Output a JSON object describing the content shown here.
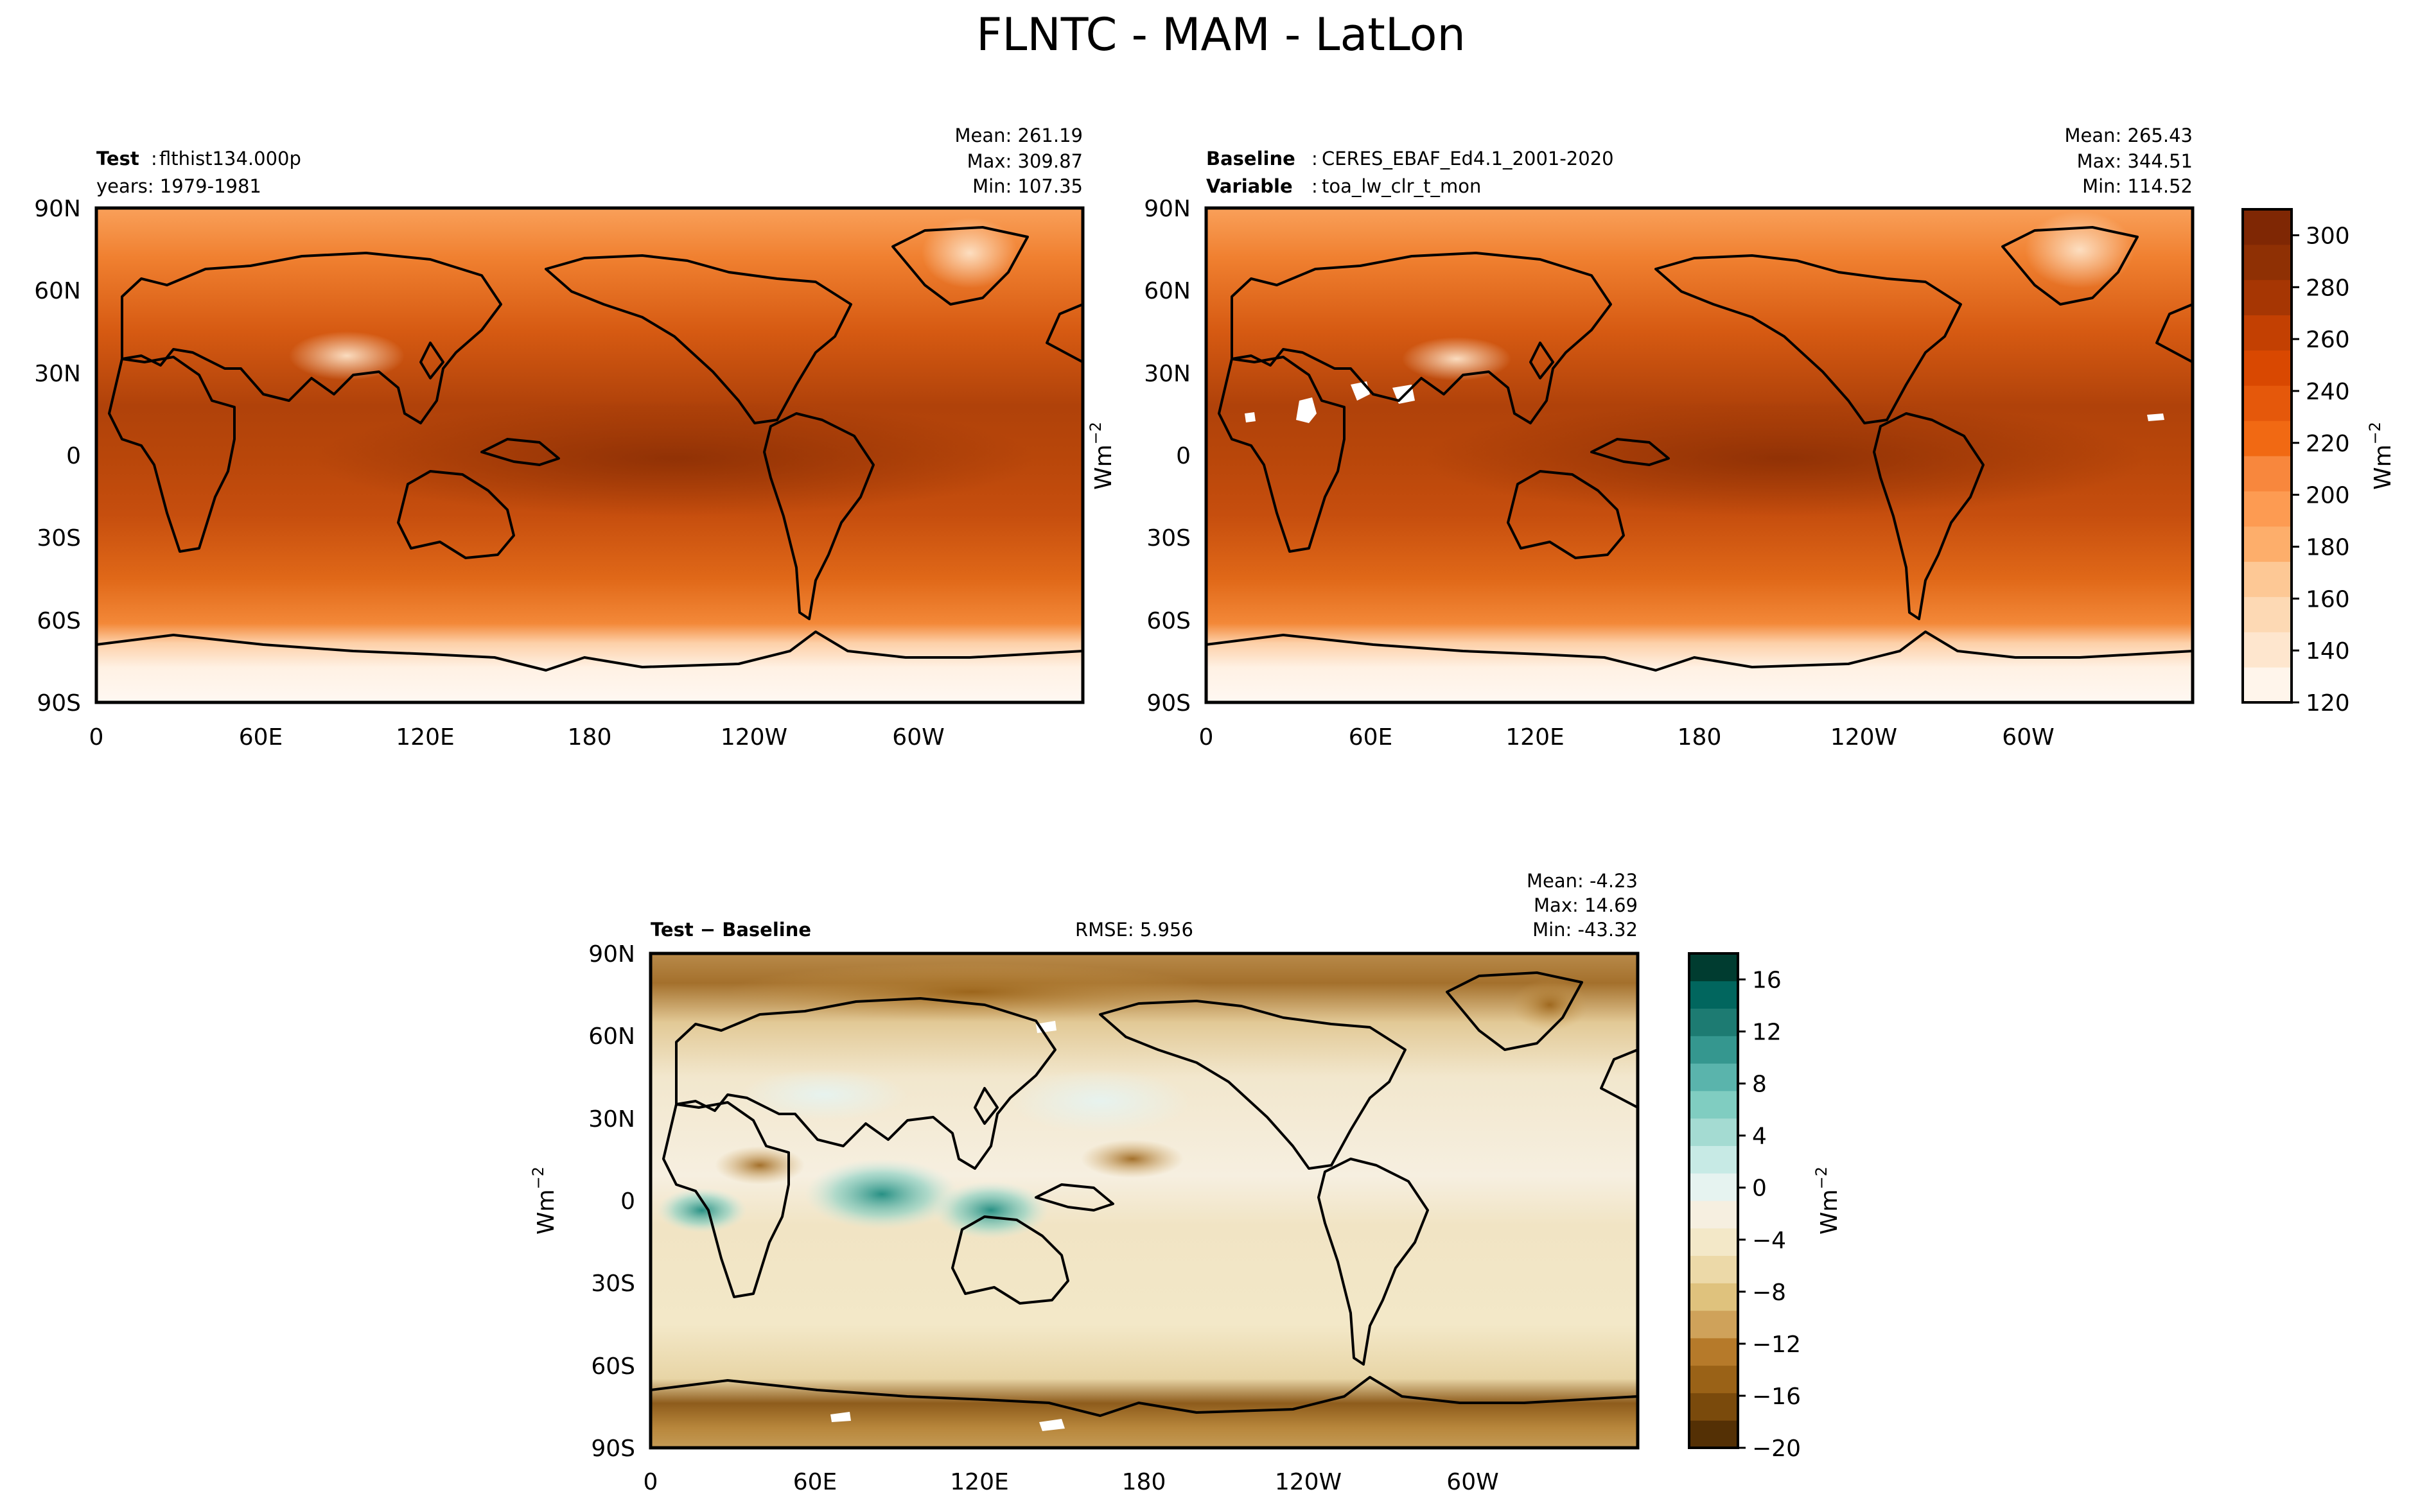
{
  "figure_title": "FLNTC - MAM - LatLon",
  "lat_ticks": [
    "90N",
    "60N",
    "30N",
    "0",
    "30S",
    "60S",
    "90S"
  ],
  "lon_ticks": [
    "0",
    "60E",
    "120E",
    "180",
    "120W",
    "60W"
  ],
  "unit_label": "Wm",
  "unit_exponent": "−2",
  "chart_data": [
    {
      "type": "heatmap",
      "id": "test",
      "title_bold": "Test",
      "title_text": "flthist134.000p",
      "subtitle": "years: 1979-1981",
      "stats": [
        "Mean: 261.19",
        "Max: 309.87",
        "Min: 107.35"
      ],
      "colormap": "Oranges",
      "range": [
        120,
        310
      ]
    },
    {
      "type": "heatmap",
      "id": "baseline",
      "title_bold": "Baseline",
      "title_text": "CERES_EBAF_Ed4.1_2001-2020",
      "subtitle_bold": "Variable",
      "subtitle_text": "toa_lw_clr_t_mon",
      "stats": [
        "Mean: 265.43",
        "Max: 344.51",
        "Min: 114.52"
      ],
      "colormap": "Oranges",
      "range": [
        120,
        310
      ],
      "ylabel": "Wm"
    },
    {
      "type": "heatmap",
      "id": "difference",
      "title_bold": "Test − Baseline",
      "rmse": "RMSE: 5.956",
      "stats": [
        "Mean: -4.23",
        "Max: 14.69",
        "Min: -43.32"
      ],
      "colormap": "BrBG",
      "range": [
        -20,
        18
      ],
      "ylabel": "Wm"
    }
  ],
  "colorbars": [
    {
      "id": "main",
      "ticks": [
        "300",
        "280",
        "260",
        "240",
        "220",
        "200",
        "180",
        "160",
        "140",
        "120"
      ],
      "tick_values": [
        300,
        280,
        260,
        240,
        220,
        200,
        180,
        160,
        140,
        120
      ],
      "range": [
        120,
        310
      ],
      "colors": [
        "#fff5eb",
        "#fee6ce",
        "#fdd9b4",
        "#fdc895",
        "#fdae6b",
        "#fd9b52",
        "#f8873d",
        "#f16913",
        "#e5580b",
        "#d94801",
        "#c34002",
        "#a63603",
        "#8f3004",
        "#7f2704"
      ]
    },
    {
      "id": "diff",
      "ticks": [
        "16",
        "12",
        "8",
        "4",
        "0",
        "−4",
        "−8",
        "−12",
        "−16",
        "−20"
      ],
      "tick_values": [
        16,
        12,
        8,
        4,
        0,
        -4,
        -8,
        -12,
        -16,
        -20
      ],
      "range": [
        -20,
        18
      ],
      "colors": [
        "#543005",
        "#7a4a0c",
        "#9a6217",
        "#b67a2a",
        "#cfa25a",
        "#dfc27d",
        "#ecd9a8",
        "#f3e8c8",
        "#f6efe0",
        "#e6f3f0",
        "#c7eae5",
        "#a4dbd2",
        "#80cdc1",
        "#5ab4ac",
        "#35978f",
        "#1d7b72",
        "#01665e",
        "#003c30"
      ]
    }
  ]
}
